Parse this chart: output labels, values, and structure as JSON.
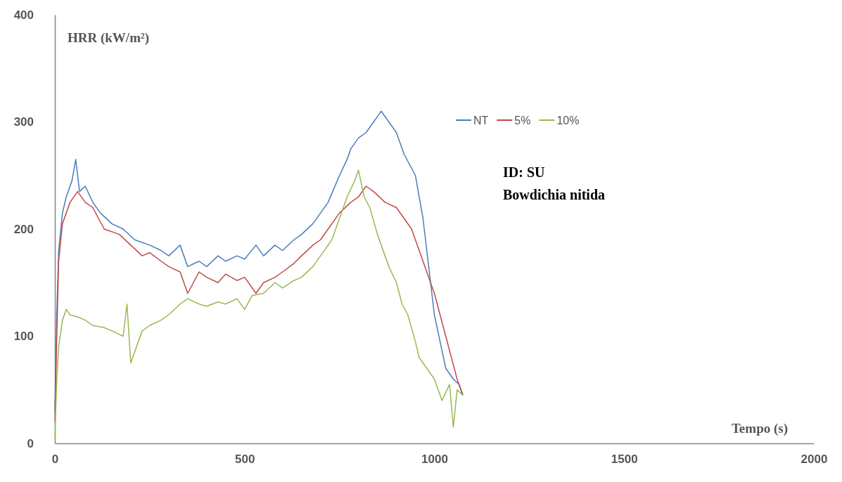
{
  "chart_data": {
    "type": "line",
    "xlabel": "Tempo (s)",
    "ylabel": "HRR (kW/m²)",
    "xlim": [
      0,
      2000
    ],
    "xticks": [
      0,
      500,
      1000,
      1500,
      2000
    ],
    "ylim": [
      0,
      400
    ],
    "yticks": [
      0,
      100,
      200,
      300,
      400
    ],
    "grid": false,
    "legend": "top right",
    "marker": "none",
    "line_style": "solid",
    "annotations": [
      "ID: SU",
      "Bowdichia nitida"
    ],
    "series": [
      {
        "name": "NT",
        "color": "#4a7ebb",
        "x": [
          0,
          5,
          10,
          20,
          30,
          45,
          55,
          65,
          80,
          100,
          120,
          150,
          180,
          210,
          250,
          280,
          300,
          330,
          350,
          380,
          400,
          430,
          450,
          480,
          500,
          530,
          550,
          580,
          600,
          630,
          650,
          680,
          700,
          720,
          750,
          770,
          780,
          800,
          820,
          840,
          850,
          860,
          880,
          900,
          920,
          950,
          970,
          980,
          1000,
          1015,
          1030,
          1050,
          1065,
          1075
        ],
        "values": [
          30,
          120,
          180,
          215,
          230,
          245,
          265,
          235,
          240,
          225,
          215,
          205,
          200,
          190,
          185,
          180,
          175,
          185,
          165,
          170,
          165,
          175,
          170,
          175,
          172,
          185,
          175,
          185,
          180,
          190,
          195,
          205,
          215,
          225,
          250,
          265,
          275,
          285,
          290,
          300,
          305,
          310,
          300,
          290,
          270,
          250,
          210,
          180,
          120,
          95,
          70,
          60,
          55,
          45
        ]
      },
      {
        "name": "5%",
        "color": "#be4b48",
        "x": [
          0,
          5,
          10,
          20,
          40,
          60,
          80,
          100,
          130,
          170,
          200,
          230,
          250,
          280,
          300,
          330,
          350,
          380,
          400,
          430,
          450,
          480,
          500,
          530,
          550,
          580,
          600,
          630,
          650,
          680,
          700,
          720,
          750,
          780,
          800,
          820,
          840,
          870,
          900,
          920,
          940,
          960,
          980,
          1000,
          1030,
          1060,
          1075
        ],
        "values": [
          20,
          100,
          170,
          205,
          225,
          235,
          225,
          220,
          200,
          195,
          185,
          175,
          178,
          170,
          165,
          160,
          140,
          160,
          155,
          150,
          158,
          152,
          155,
          140,
          150,
          155,
          160,
          168,
          175,
          185,
          190,
          200,
          215,
          225,
          230,
          240,
          235,
          225,
          220,
          210,
          200,
          180,
          160,
          140,
          100,
          60,
          45
        ]
      },
      {
        "name": "10%",
        "color": "#98b954",
        "x": [
          0,
          5,
          10,
          20,
          30,
          40,
          60,
          80,
          100,
          130,
          150,
          180,
          190,
          200,
          230,
          250,
          280,
          300,
          330,
          350,
          380,
          400,
          430,
          450,
          480,
          500,
          520,
          550,
          580,
          600,
          630,
          650,
          680,
          700,
          730,
          750,
          770,
          790,
          800,
          815,
          830,
          850,
          860,
          880,
          900,
          915,
          930,
          950,
          960,
          980,
          1000,
          1020,
          1040,
          1050,
          1060,
          1075
        ],
        "values": [
          5,
          60,
          90,
          115,
          125,
          120,
          118,
          115,
          110,
          108,
          105,
          100,
          130,
          75,
          105,
          110,
          115,
          120,
          130,
          135,
          130,
          128,
          132,
          130,
          135,
          125,
          138,
          140,
          150,
          145,
          152,
          155,
          165,
          175,
          190,
          210,
          230,
          245,
          255,
          230,
          220,
          195,
          185,
          165,
          150,
          130,
          120,
          95,
          80,
          70,
          60,
          40,
          55,
          15,
          50,
          45
        ]
      }
    ]
  }
}
